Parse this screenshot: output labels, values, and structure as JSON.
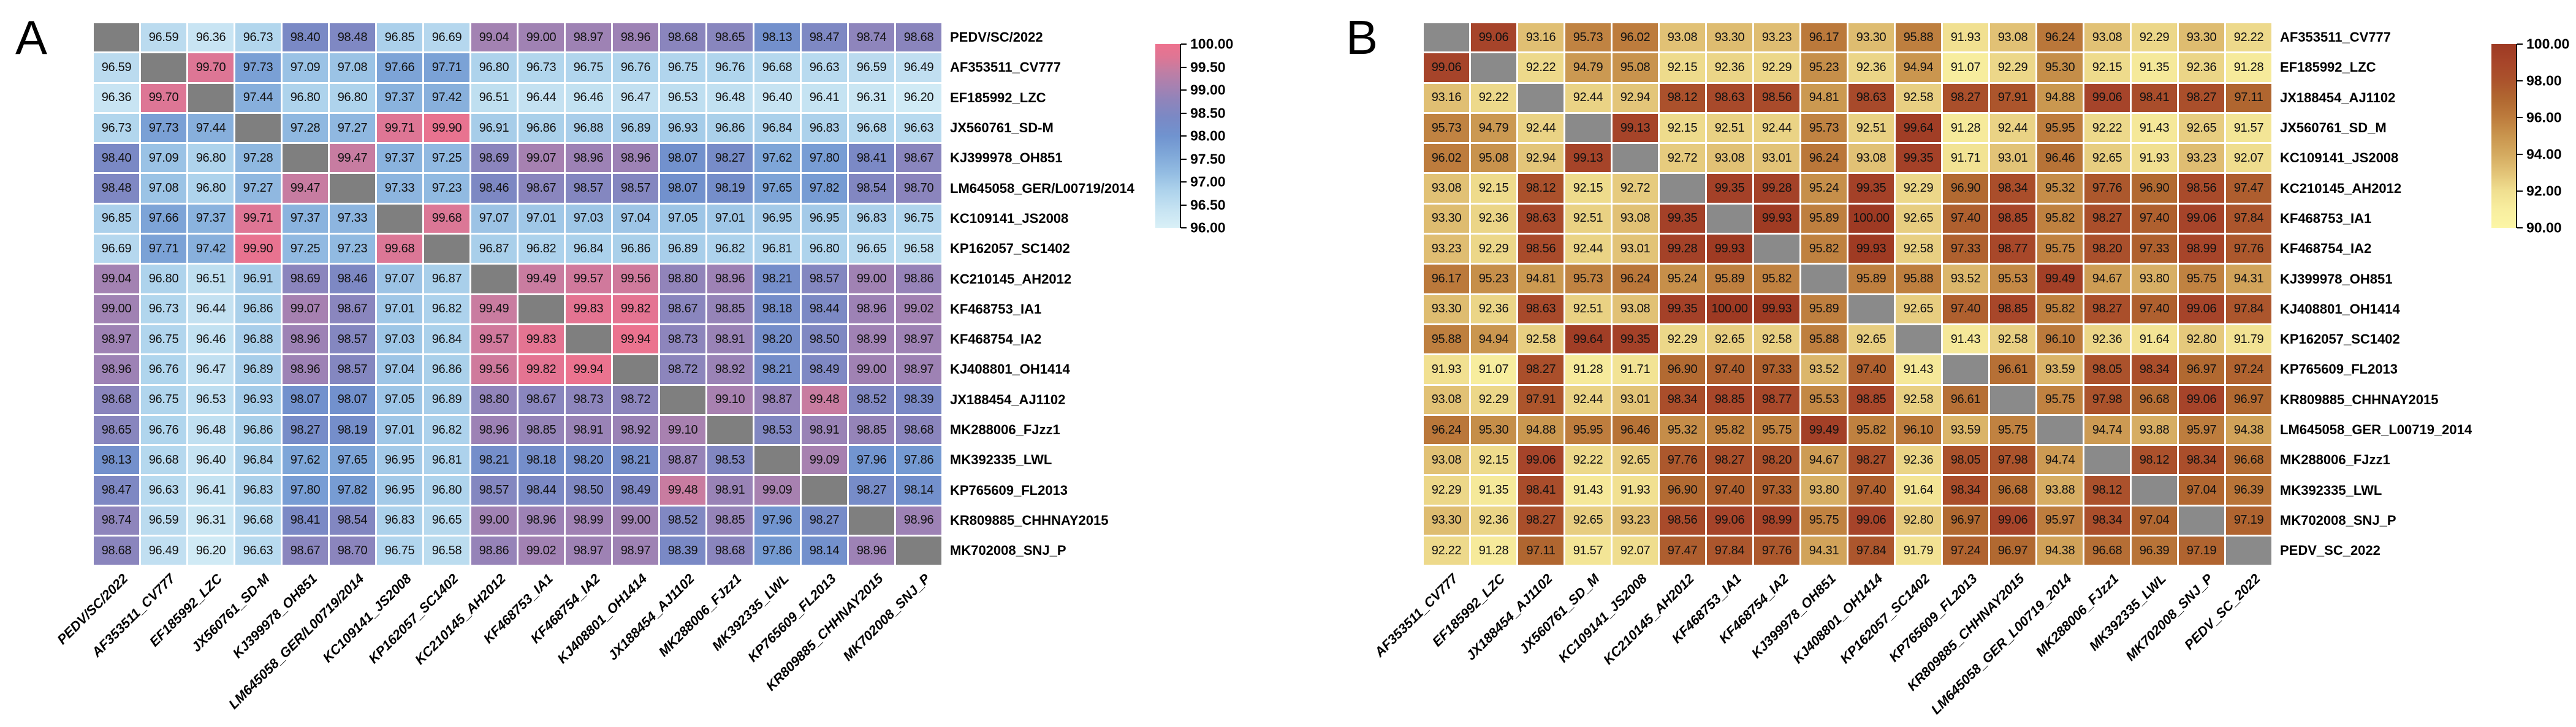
{
  "figure": {
    "type": "pairwise-identity-heatmaps",
    "background": "#ffffff"
  },
  "chart_data": [
    {
      "type": "heatmap",
      "panel_label": "A",
      "diag_color": "#7f7f7f",
      "value_range": [
        96.0,
        100.0
      ],
      "colorbar_ticks": [
        "100.00",
        "99.50",
        "99.00",
        "98.50",
        "98.00",
        "97.50",
        "97.00",
        "96.50",
        "96.00"
      ],
      "colormap_stops": [
        [
          96.0,
          "#d9f0f7"
        ],
        [
          96.4,
          "#c6e3f2"
        ],
        [
          96.8,
          "#aed3ec"
        ],
        [
          97.2,
          "#93bce2"
        ],
        [
          97.6,
          "#7fa7d8"
        ],
        [
          98.0,
          "#7093cf"
        ],
        [
          98.4,
          "#7a89c5"
        ],
        [
          98.8,
          "#9184ba"
        ],
        [
          99.1,
          "#a881b0"
        ],
        [
          99.4,
          "#c07ea4"
        ],
        [
          99.7,
          "#dd7695"
        ],
        [
          100.0,
          "#ee728e"
        ]
      ],
      "labels": [
        "PEDV/SC/2022",
        "AF353511_CV777",
        "EF185992_LZC",
        "JX560761_SD-M",
        "KJ399978_OH851",
        "LM645058_GER/L00719/2014",
        "KC109141_JS2008",
        "KP162057_SC1402",
        "KC210145_AH2012",
        "KF468753_IA1",
        "KF468754_IA2",
        "KJ408801_OH1414",
        "JX188454_AJ1102",
        "MK288006_FJzz1",
        "MK392335_LWL",
        "KP765609_FL2013",
        "KR809885_CHHNAY2015",
        "MK702008_SNJ_P"
      ],
      "matrix": [
        [
          null,
          96.59,
          96.36,
          96.73,
          98.4,
          98.48,
          96.85,
          96.69,
          99.04,
          99.0,
          98.97,
          98.96,
          98.68,
          98.65,
          98.13,
          98.47,
          98.74,
          98.68
        ],
        [
          96.59,
          null,
          99.7,
          97.73,
          97.09,
          97.08,
          97.66,
          97.71,
          96.8,
          96.73,
          96.75,
          96.76,
          96.75,
          96.76,
          96.68,
          96.63,
          96.59,
          96.49
        ],
        [
          96.36,
          99.7,
          null,
          97.44,
          96.8,
          96.8,
          97.37,
          97.42,
          96.51,
          96.44,
          96.46,
          96.47,
          96.53,
          96.48,
          96.4,
          96.41,
          96.31,
          96.2
        ],
        [
          96.73,
          97.73,
          97.44,
          null,
          97.28,
          97.27,
          99.71,
          99.9,
          96.91,
          96.86,
          96.88,
          96.89,
          96.93,
          96.86,
          96.84,
          96.83,
          96.68,
          96.63
        ],
        [
          98.4,
          97.09,
          96.8,
          97.28,
          null,
          99.47,
          97.37,
          97.25,
          98.69,
          99.07,
          98.96,
          98.96,
          98.07,
          98.27,
          97.62,
          97.8,
          98.41,
          98.67
        ],
        [
          98.48,
          97.08,
          96.8,
          97.27,
          99.47,
          null,
          97.33,
          97.23,
          98.46,
          98.67,
          98.57,
          98.57,
          98.07,
          98.19,
          97.65,
          97.82,
          98.54,
          98.7
        ],
        [
          96.85,
          97.66,
          97.37,
          99.71,
          97.37,
          97.33,
          null,
          99.68,
          97.07,
          97.01,
          97.03,
          97.04,
          97.05,
          97.01,
          96.95,
          96.95,
          96.83,
          96.75
        ],
        [
          96.69,
          97.71,
          97.42,
          99.9,
          97.25,
          97.23,
          99.68,
          null,
          96.87,
          96.82,
          96.84,
          96.86,
          96.89,
          96.82,
          96.81,
          96.8,
          96.65,
          96.58
        ],
        [
          99.04,
          96.8,
          96.51,
          96.91,
          98.69,
          98.46,
          97.07,
          96.87,
          null,
          99.49,
          99.57,
          99.56,
          98.8,
          98.96,
          98.21,
          98.57,
          99.0,
          98.86
        ],
        [
          99.0,
          96.73,
          96.44,
          96.86,
          99.07,
          98.67,
          97.01,
          96.82,
          99.49,
          null,
          99.83,
          99.82,
          98.67,
          98.85,
          98.18,
          98.44,
          98.96,
          99.02
        ],
        [
          98.97,
          96.75,
          96.46,
          96.88,
          98.96,
          98.57,
          97.03,
          96.84,
          99.57,
          99.83,
          null,
          99.94,
          98.73,
          98.91,
          98.2,
          98.5,
          98.99,
          98.97
        ],
        [
          98.96,
          96.76,
          96.47,
          96.89,
          98.96,
          98.57,
          97.04,
          96.86,
          99.56,
          99.82,
          99.94,
          null,
          98.72,
          98.92,
          98.21,
          98.49,
          99.0,
          98.97
        ],
        [
          98.68,
          96.75,
          96.53,
          96.93,
          98.07,
          98.07,
          97.05,
          96.89,
          98.8,
          98.67,
          98.73,
          98.72,
          null,
          99.1,
          98.87,
          99.48,
          98.52,
          98.39
        ],
        [
          98.65,
          96.76,
          96.48,
          96.86,
          98.27,
          98.19,
          97.01,
          96.82,
          98.96,
          98.85,
          98.91,
          98.92,
          99.1,
          null,
          98.53,
          98.91,
          98.85,
          98.68
        ],
        [
          98.13,
          96.68,
          96.4,
          96.84,
          97.62,
          97.65,
          96.95,
          96.81,
          98.21,
          98.18,
          98.2,
          98.21,
          98.87,
          98.53,
          null,
          99.09,
          97.96,
          97.86
        ],
        [
          98.47,
          96.63,
          96.41,
          96.83,
          97.8,
          97.82,
          96.95,
          96.8,
          98.57,
          98.44,
          98.5,
          98.49,
          99.48,
          98.91,
          99.09,
          null,
          98.27,
          98.14
        ],
        [
          98.74,
          96.59,
          96.31,
          96.68,
          98.41,
          98.54,
          96.83,
          96.65,
          99.0,
          98.96,
          98.99,
          99.0,
          98.52,
          98.85,
          97.96,
          98.27,
          null,
          98.96
        ],
        [
          98.68,
          96.49,
          96.2,
          96.63,
          98.67,
          98.7,
          96.75,
          96.58,
          98.86,
          99.02,
          98.97,
          98.97,
          98.39,
          98.68,
          97.86,
          98.14,
          98.96,
          null
        ]
      ]
    },
    {
      "type": "heatmap",
      "panel_label": "B",
      "diag_color": "#8a8a8a",
      "value_range": [
        90.0,
        100.0
      ],
      "colorbar_ticks": [
        "100.00",
        "98.00",
        "96.00",
        "94.00",
        "92.00",
        "90.00"
      ],
      "colormap_stops": [
        [
          90.0,
          "#fcf6a6"
        ],
        [
          91.0,
          "#f8ee9f"
        ],
        [
          92.0,
          "#f0df90"
        ],
        [
          93.0,
          "#e2c377"
        ],
        [
          94.0,
          "#d4aa60"
        ],
        [
          95.0,
          "#c9954e"
        ],
        [
          96.0,
          "#bd7c3d"
        ],
        [
          97.0,
          "#b16831"
        ],
        [
          98.0,
          "#ab532c"
        ],
        [
          99.0,
          "#a7452a"
        ],
        [
          100.0,
          "#9e3a23"
        ]
      ],
      "labels": [
        "AF353511_CV777",
        "EF185992_LZC",
        "JX188454_AJ1102",
        "JX560761_SD_M",
        "KC109141_JS2008",
        "KC210145_AH2012",
        "KF468753_IA1",
        "KF468754_IA2",
        "KJ399978_OH851",
        "KJ408801_OH1414",
        "KP162057_SC1402",
        "KP765609_FL2013",
        "KR809885_CHHNAY2015",
        "LM645058_GER_L00719_2014",
        "MK288006_FJzz1",
        "MK392335_LWL",
        "MK702008_SNJ_P",
        "PEDV_SC_2022"
      ],
      "matrix": [
        [
          null,
          99.06,
          93.16,
          95.73,
          96.02,
          93.08,
          93.3,
          93.23,
          96.17,
          93.3,
          95.88,
          91.93,
          93.08,
          96.24,
          93.08,
          92.29,
          93.3,
          92.22
        ],
        [
          99.06,
          null,
          92.22,
          94.79,
          95.08,
          92.15,
          92.36,
          92.29,
          95.23,
          92.36,
          94.94,
          91.07,
          92.29,
          95.3,
          92.15,
          91.35,
          92.36,
          91.28
        ],
        [
          93.16,
          92.22,
          null,
          92.44,
          92.94,
          98.12,
          98.63,
          98.56,
          94.81,
          98.63,
          92.58,
          98.27,
          97.91,
          94.88,
          99.06,
          98.41,
          98.27,
          97.11
        ],
        [
          95.73,
          94.79,
          92.44,
          null,
          99.13,
          92.15,
          92.51,
          92.44,
          95.73,
          92.51,
          99.64,
          91.28,
          92.44,
          95.95,
          92.22,
          91.43,
          92.65,
          91.57
        ],
        [
          96.02,
          95.08,
          92.94,
          99.13,
          null,
          92.72,
          93.08,
          93.01,
          96.24,
          93.08,
          99.35,
          91.71,
          93.01,
          96.46,
          92.65,
          91.93,
          93.23,
          92.07
        ],
        [
          93.08,
          92.15,
          98.12,
          92.15,
          92.72,
          null,
          99.35,
          99.28,
          95.24,
          99.35,
          92.29,
          96.9,
          98.34,
          95.32,
          97.76,
          96.9,
          98.56,
          97.47
        ],
        [
          93.3,
          92.36,
          98.63,
          92.51,
          93.08,
          99.35,
          null,
          99.93,
          95.89,
          100.0,
          92.65,
          97.4,
          98.85,
          95.82,
          98.27,
          97.4,
          99.06,
          97.84
        ],
        [
          93.23,
          92.29,
          98.56,
          92.44,
          93.01,
          99.28,
          99.93,
          null,
          95.82,
          99.93,
          92.58,
          97.33,
          98.77,
          95.75,
          98.2,
          97.33,
          98.99,
          97.76
        ],
        [
          96.17,
          95.23,
          94.81,
          95.73,
          96.24,
          95.24,
          95.89,
          95.82,
          null,
          95.89,
          95.88,
          93.52,
          95.53,
          99.49,
          94.67,
          93.8,
          95.75,
          94.31
        ],
        [
          93.3,
          92.36,
          98.63,
          92.51,
          93.08,
          99.35,
          100.0,
          99.93,
          95.89,
          null,
          92.65,
          97.4,
          98.85,
          95.82,
          98.27,
          97.4,
          99.06,
          97.84
        ],
        [
          95.88,
          94.94,
          92.58,
          99.64,
          99.35,
          92.29,
          92.65,
          92.58,
          95.88,
          92.65,
          null,
          91.43,
          92.58,
          96.1,
          92.36,
          91.64,
          92.8,
          91.79
        ],
        [
          91.93,
          91.07,
          98.27,
          91.28,
          91.71,
          96.9,
          97.4,
          97.33,
          93.52,
          97.4,
          91.43,
          null,
          96.61,
          93.59,
          98.05,
          98.34,
          96.97,
          97.24
        ],
        [
          93.08,
          92.29,
          97.91,
          92.44,
          93.01,
          98.34,
          98.85,
          98.77,
          95.53,
          98.85,
          92.58,
          96.61,
          null,
          95.75,
          97.98,
          96.68,
          99.06,
          96.97
        ],
        [
          96.24,
          95.3,
          94.88,
          95.95,
          96.46,
          95.32,
          95.82,
          95.75,
          99.49,
          95.82,
          96.1,
          93.59,
          95.75,
          null,
          94.74,
          93.88,
          95.97,
          94.38
        ],
        [
          93.08,
          92.15,
          99.06,
          92.22,
          92.65,
          97.76,
          98.27,
          98.2,
          94.67,
          98.27,
          92.36,
          98.05,
          97.98,
          94.74,
          null,
          98.12,
          98.34,
          96.68
        ],
        [
          92.29,
          91.35,
          98.41,
          91.43,
          91.93,
          96.9,
          97.4,
          97.33,
          93.8,
          97.4,
          91.64,
          98.34,
          96.68,
          93.88,
          98.12,
          null,
          97.04,
          96.39
        ],
        [
          93.3,
          92.36,
          98.27,
          92.65,
          93.23,
          98.56,
          99.06,
          98.99,
          95.75,
          99.06,
          92.8,
          96.97,
          99.06,
          95.97,
          98.34,
          97.04,
          null,
          97.19
        ],
        [
          92.22,
          91.28,
          97.11,
          91.57,
          92.07,
          97.47,
          97.84,
          97.76,
          94.31,
          97.84,
          91.79,
          97.24,
          96.97,
          94.38,
          96.68,
          96.39,
          97.19,
          null
        ]
      ]
    }
  ]
}
